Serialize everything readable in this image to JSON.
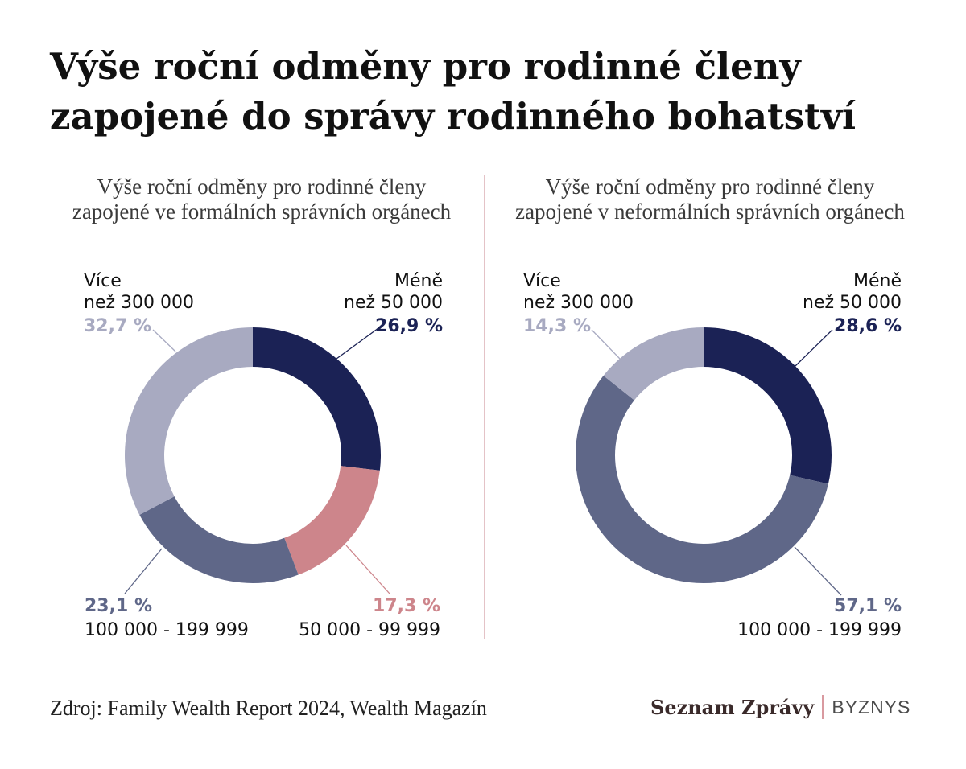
{
  "title": "Výše roční odměny pro rodinné členy zapojené do správy rodinného bohatství",
  "source": "Zdroj: Family Wealth Report 2024, Wealth Magazín",
  "brand": {
    "name": "Seznam Zprávy",
    "section": "BYZNYS"
  },
  "colors": {
    "less_50k": "#1b2255",
    "from_50k": "#cd858b",
    "from_100k": "#5f6788",
    "more_300k": "#a8aac1",
    "label_text": "#111111",
    "divider": "#e4c3c7"
  },
  "chart_data": [
    {
      "type": "pie",
      "donut": true,
      "title": "Výše roční odměny pro rodinné členy zapojené ve formálních správních orgánech",
      "slices": [
        {
          "label": "Méně než 50 000",
          "value": 26.9,
          "value_label": "26,9 %",
          "color": "#1b2255"
        },
        {
          "label": "50 000 - 99 999",
          "value": 17.3,
          "value_label": "17,3 %",
          "color": "#cd858b"
        },
        {
          "label": "100 000 - 199 999",
          "value": 23.1,
          "value_label": "23,1 %",
          "color": "#5f6788"
        },
        {
          "label": "Více než 300 000",
          "value": 32.7,
          "value_label": "32,7 %",
          "color": "#a8aac1"
        }
      ]
    },
    {
      "type": "pie",
      "donut": true,
      "title": "Výše roční odměny pro rodinné členy zapojené v neformálních správních orgánech",
      "slices": [
        {
          "label": "Méně než 50 000",
          "value": 28.6,
          "value_label": "28,6 %",
          "color": "#1b2255"
        },
        {
          "label": "100 000 - 199 999",
          "value": 57.1,
          "value_label": "57,1 %",
          "color": "#5f6788"
        },
        {
          "label": "Více než 300 000",
          "value": 14.3,
          "value_label": "14,3 %",
          "color": "#a8aac1"
        }
      ]
    }
  ]
}
